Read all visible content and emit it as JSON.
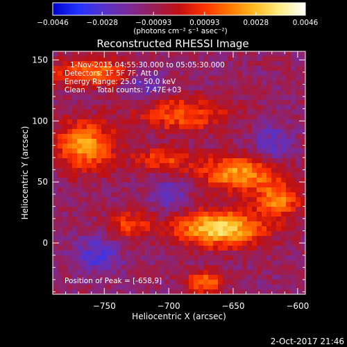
{
  "chart_data": {
    "type": "heatmap",
    "title": "Reconstructed RHESSI Image",
    "xlabel": "Heliocentric X (arcsec)",
    "ylabel": "Heliocentric Y (arcsec)",
    "xlim": [
      -790,
      -594
    ],
    "ylim": [
      -42,
      157
    ],
    "x_ticks": [
      -750,
      -700,
      -650,
      -600
    ],
    "y_ticks": [
      0,
      50,
      100,
      150
    ],
    "x_tick_labels": [
      "−750",
      "−700",
      "−650",
      "−600"
    ],
    "y_tick_labels": [
      "0",
      "50",
      "100",
      "150"
    ],
    "colorbar": {
      "min": -0.0046,
      "max": 0.0046,
      "ticks": [
        -0.0046,
        -0.0028,
        -0.00093,
        0.00093,
        0.0028,
        0.0046
      ],
      "tick_labels": [
        "−0.0046",
        "−0.0028",
        "−0.00093",
        "0.00093",
        "0.0028",
        "0.0046"
      ],
      "unit_label": "(photons cm⁻² s⁻¹ asec⁻²)",
      "colormap": [
        "#0000cc",
        "#2233ff",
        "#5533cc",
        "#7a2a9a",
        "#9a1f55",
        "#c01010",
        "#ff3300",
        "#ff7700",
        "#ffbb22",
        "#ffee88",
        "#ffffff"
      ]
    },
    "grid": false,
    "peak": {
      "x": -658,
      "y": 9
    },
    "sources": [
      {
        "x": -660,
        "y": 12,
        "sx": 24,
        "sy": 10,
        "amp": 0.0046
      },
      {
        "x": -645,
        "y": 57,
        "sx": 22,
        "sy": 10,
        "amp": 0.0035
      },
      {
        "x": -615,
        "y": 35,
        "sx": 12,
        "sy": 9,
        "amp": 0.003
      },
      {
        "x": -765,
        "y": 80,
        "sx": 16,
        "sy": 14,
        "amp": 0.0034
      },
      {
        "x": -760,
        "y": 140,
        "sx": 22,
        "sy": 8,
        "amp": 0.0028
      },
      {
        "x": -690,
        "y": 105,
        "sx": 25,
        "sy": 10,
        "amp": 0.0024
      },
      {
        "x": -705,
        "y": 68,
        "sx": 16,
        "sy": 7,
        "amp": 0.0021
      },
      {
        "x": -730,
        "y": 15,
        "sx": 12,
        "sy": 8,
        "amp": 0.0021
      },
      {
        "x": -672,
        "y": -32,
        "sx": 10,
        "sy": 6,
        "amp": 0.003
      },
      {
        "x": -755,
        "y": -10,
        "sx": 12,
        "sy": 10,
        "amp": -0.0018
      },
      {
        "x": -720,
        "y": 130,
        "sx": 10,
        "sy": 10,
        "amp": -0.0016
      },
      {
        "x": -700,
        "y": 40,
        "sx": 10,
        "sy": 10,
        "amp": -0.0015
      },
      {
        "x": -620,
        "y": 80,
        "sx": 10,
        "sy": 12,
        "amp": -0.0015
      }
    ]
  },
  "annotation": {
    "time": "1-Nov-2015 04:55:30.000 to 05:05:30.000",
    "detectors": "Detectors: 1F 5F 7F, Att 0",
    "energy": "Energy Range: 25.0 - 50.0 keV",
    "clean": "Clean     Total counts: 7.47E+03",
    "peak": "Position of Peak = [-658,9]"
  },
  "timestamp": "2-Oct-2017 21:46"
}
